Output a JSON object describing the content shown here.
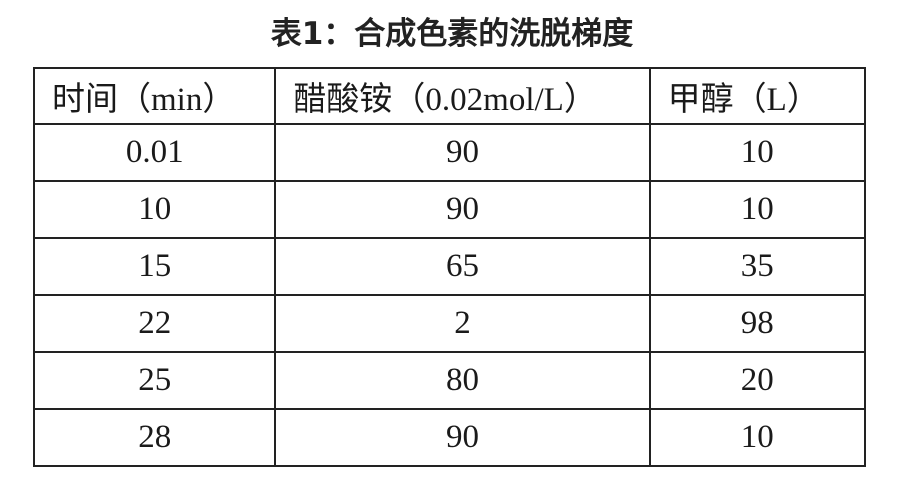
{
  "title": "表1：合成色素的洗脱梯度",
  "table": {
    "headers": [
      "时间（min）",
      "醋酸铵（0.02mol/L）",
      "甲醇（L）"
    ],
    "rows": [
      [
        "0.01",
        "90",
        "10"
      ],
      [
        "10",
        "90",
        "10"
      ],
      [
        "15",
        "65",
        "35"
      ],
      [
        "22",
        "2",
        "98"
      ],
      [
        "25",
        "80",
        "20"
      ],
      [
        "28",
        "90",
        "10"
      ]
    ]
  }
}
